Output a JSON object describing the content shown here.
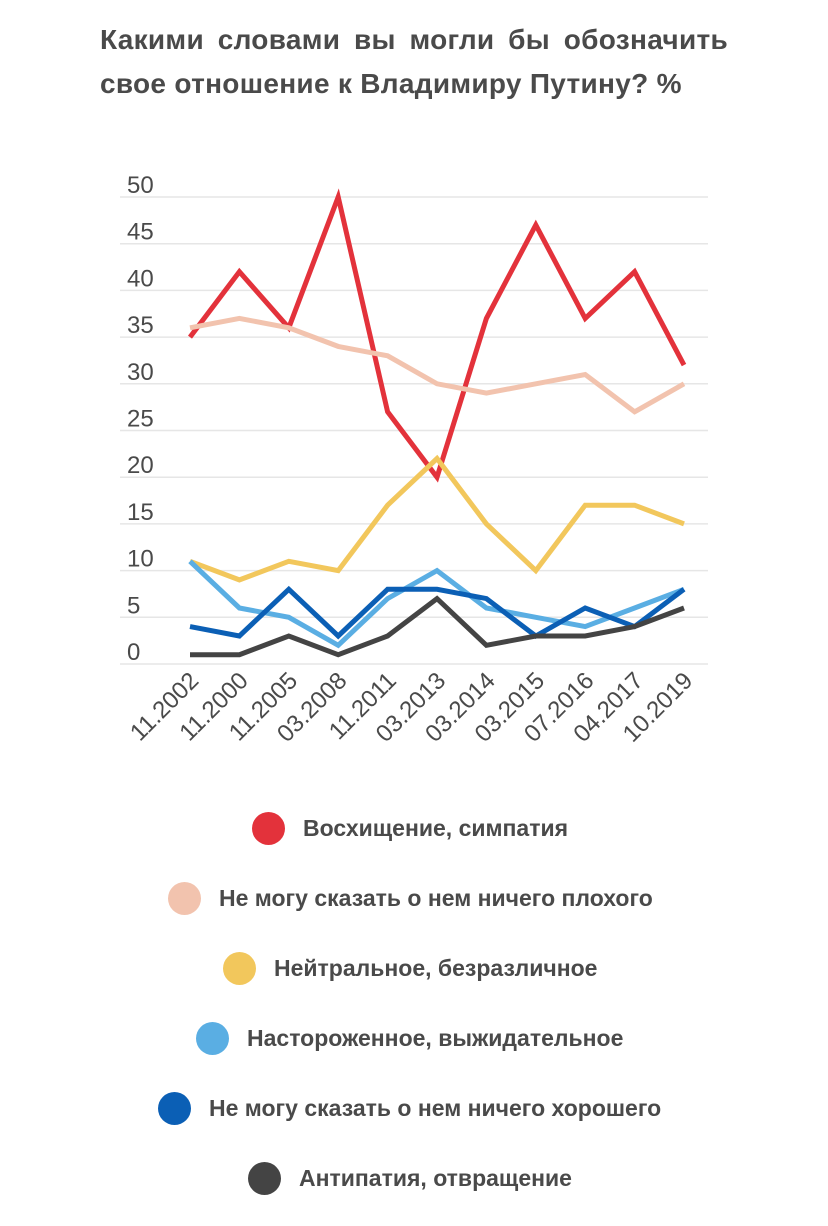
{
  "chart_data": {
    "type": "line",
    "title": "Какими словами вы могли бы обозначить свое отношение к Владимиру Путину? %",
    "xlabel": "",
    "ylabel": "",
    "ylim": [
      0,
      50
    ],
    "yticks": [
      "0",
      "5",
      "10",
      "15",
      "20",
      "25",
      "30",
      "35",
      "40",
      "45",
      "50"
    ],
    "categories": [
      "11.2002",
      "11.2000",
      "11.2005",
      "03.2008",
      "11.2011",
      "03.2013",
      "03.2014",
      "03.2015",
      "07.2016",
      "04.2017",
      "10.2019"
    ],
    "grid": true,
    "legend_placement": "bottom",
    "series": [
      {
        "name": "Восхищение, симпатия",
        "color": "#e3323b",
        "values": [
          35,
          42,
          36,
          50,
          27,
          20,
          37,
          47,
          37,
          42,
          32
        ]
      },
      {
        "name": "Не могу сказать о нем ничего плохого",
        "color": "#f2c3ae",
        "values": [
          36,
          37,
          36,
          34,
          33,
          30,
          29,
          30,
          31,
          27,
          30
        ]
      },
      {
        "name": "Нейтральное, безразличное",
        "color": "#f2c75c",
        "values": [
          11,
          9,
          11,
          10,
          17,
          22,
          15,
          10,
          17,
          17,
          15
        ]
      },
      {
        "name": "Настороженное, выжидательное",
        "color": "#5aaee3",
        "values": [
          11,
          6,
          5,
          2,
          7,
          10,
          6,
          5,
          4,
          6,
          8
        ]
      },
      {
        "name": "Не могу сказать о нем ничего хорошего",
        "color": "#0b5fb5",
        "values": [
          4,
          3,
          8,
          3,
          8,
          8,
          7,
          3,
          6,
          4,
          8
        ]
      },
      {
        "name": "Антипатия, отвращение",
        "color": "#444444",
        "values": [
          1,
          1,
          3,
          1,
          3,
          7,
          2,
          3,
          3,
          4,
          6
        ]
      }
    ]
  }
}
